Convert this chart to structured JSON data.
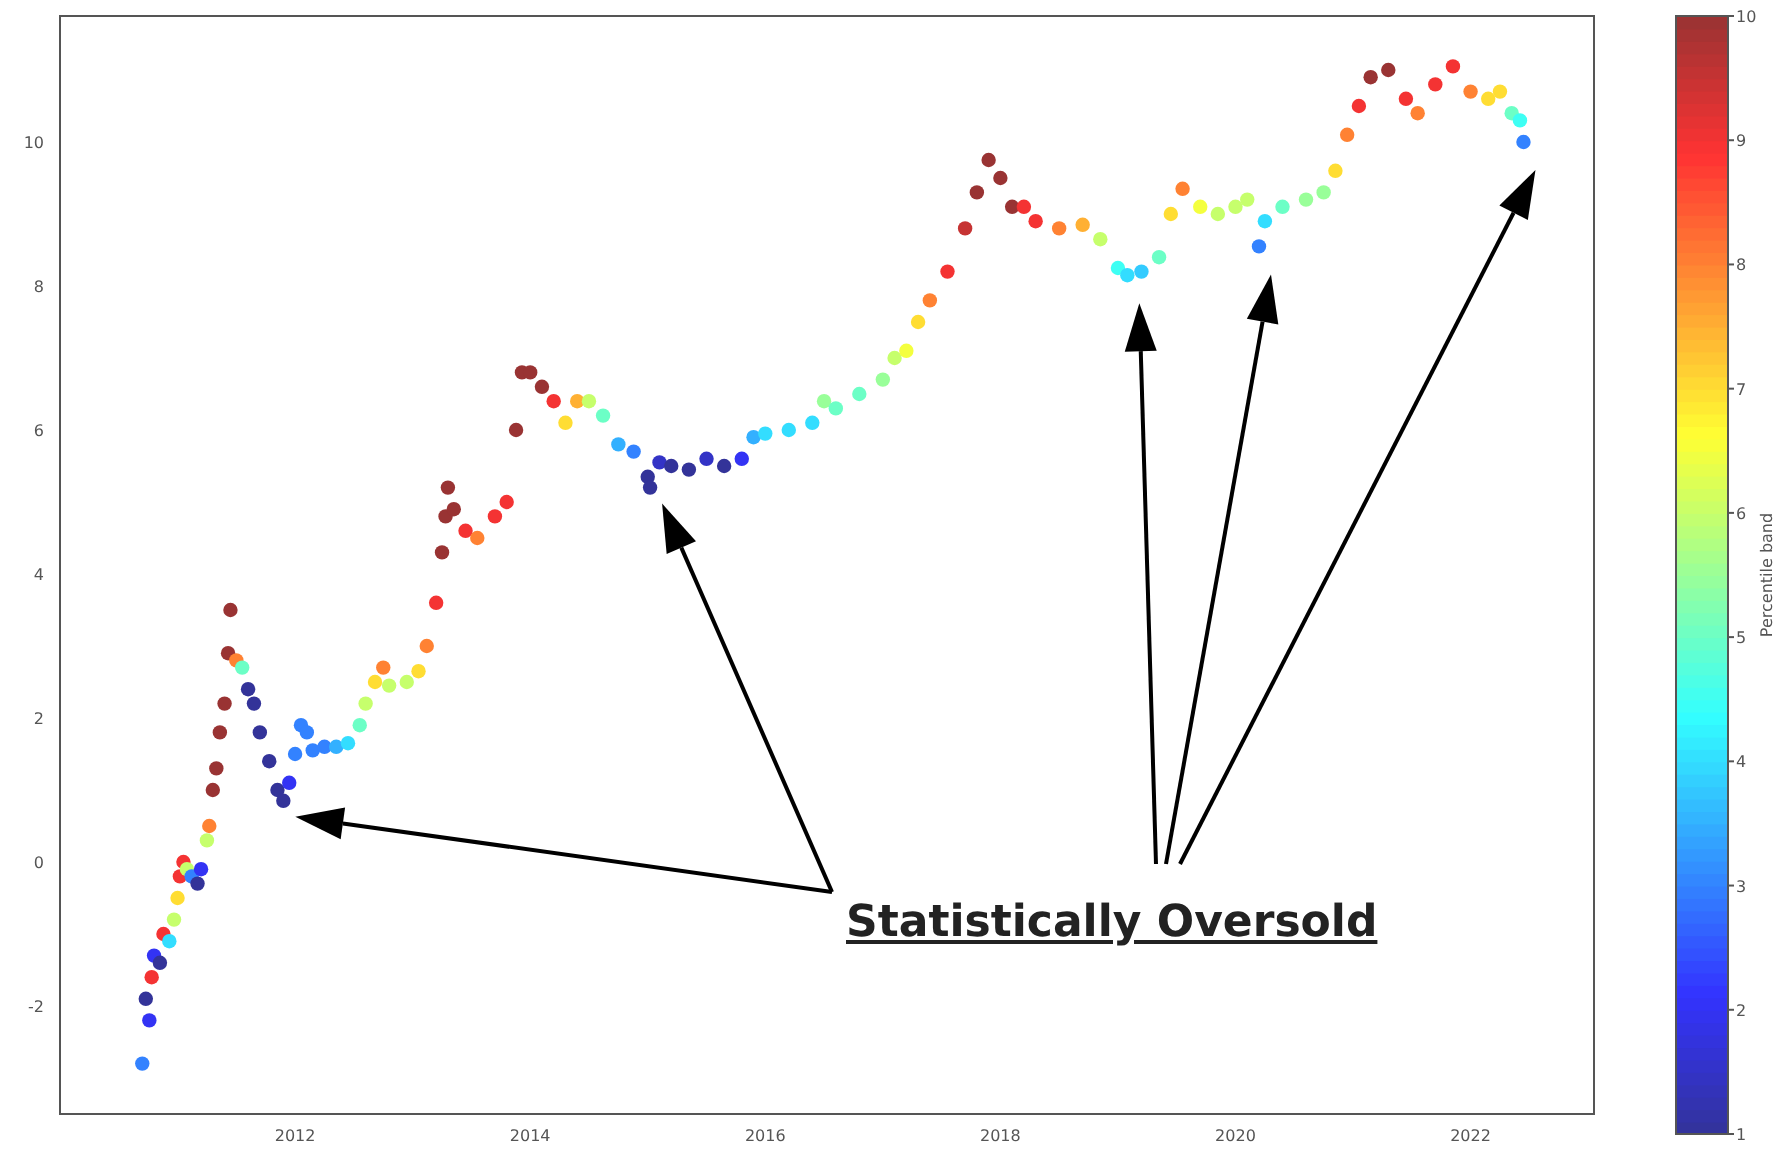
{
  "chart_data": {
    "type": "scatter",
    "x": [
      2010.7,
      2010.73,
      2010.76,
      2010.78,
      2010.8,
      2010.85,
      2010.88,
      2010.93,
      2010.97,
      2011.0,
      2011.02,
      2011.05,
      2011.08,
      2011.12,
      2011.17,
      2011.2,
      2011.25,
      2011.27,
      2011.3,
      2011.33,
      2011.36,
      2011.4,
      2011.43,
      2011.45,
      2011.5,
      2011.55,
      2011.6,
      2011.65,
      2011.7,
      2011.78,
      2011.85,
      2011.9,
      2011.95,
      2012.0,
      2012.05,
      2012.1,
      2012.15,
      2012.25,
      2012.35,
      2012.45,
      2012.55,
      2012.6,
      2012.68,
      2012.75,
      2012.8,
      2012.95,
      2013.05,
      2013.12,
      2013.2,
      2013.25,
      2013.28,
      2013.3,
      2013.35,
      2013.45,
      2013.55,
      2013.7,
      2013.8,
      2013.88,
      2013.93,
      2014.0,
      2014.1,
      2014.2,
      2014.3,
      2014.4,
      2014.5,
      2014.62,
      2014.75,
      2014.88,
      2015.0,
      2015.02,
      2015.1,
      2015.2,
      2015.35,
      2015.5,
      2015.65,
      2015.8,
      2015.9,
      2016.0,
      2016.2,
      2016.4,
      2016.5,
      2016.6,
      2016.8,
      2017.0,
      2017.1,
      2017.2,
      2017.3,
      2017.4,
      2017.55,
      2017.7,
      2017.8,
      2017.9,
      2018.0,
      2018.1,
      2018.2,
      2018.3,
      2018.5,
      2018.7,
      2018.85,
      2019.0,
      2019.08,
      2019.2,
      2019.35,
      2019.45,
      2019.55,
      2019.7,
      2019.85,
      2020.0,
      2020.1,
      2020.2,
      2020.25,
      2020.4,
      2020.6,
      2020.75,
      2020.85,
      2020.95,
      2021.05,
      2021.15,
      2021.3,
      2021.45,
      2021.55,
      2021.7,
      2021.85,
      2022.0,
      2022.15,
      2022.25,
      2022.35,
      2022.42,
      2022.45
    ],
    "values": [
      -2.8,
      -1.9,
      -2.2,
      -1.6,
      -1.3,
      -1.4,
      -1.0,
      -1.1,
      -0.8,
      -0.5,
      -0.2,
      0.0,
      -0.1,
      -0.2,
      -0.3,
      -0.1,
      0.3,
      0.5,
      1.0,
      1.3,
      1.8,
      2.2,
      2.9,
      3.5,
      2.8,
      2.7,
      2.4,
      2.2,
      1.8,
      1.4,
      1.0,
      0.85,
      1.1,
      1.5,
      1.9,
      1.8,
      1.55,
      1.6,
      1.6,
      1.65,
      1.9,
      2.2,
      2.5,
      2.7,
      2.45,
      2.5,
      2.65,
      3.0,
      3.6,
      4.3,
      4.8,
      5.2,
      4.9,
      4.6,
      4.5,
      4.8,
      5.0,
      6.0,
      6.8,
      6.8,
      6.6,
      6.4,
      6.1,
      6.4,
      6.4,
      6.2,
      5.8,
      5.7,
      5.35,
      5.2,
      5.55,
      5.5,
      5.45,
      5.6,
      5.5,
      5.6,
      5.9,
      5.95,
      6.0,
      6.1,
      6.4,
      6.3,
      6.5,
      6.7,
      7.0,
      7.1,
      7.5,
      7.8,
      8.2,
      8.8,
      9.3,
      9.75,
      9.5,
      9.1,
      9.1,
      8.9,
      8.8,
      8.85,
      8.65,
      8.25,
      8.15,
      8.2,
      8.4,
      9.0,
      9.35,
      9.1,
      9.0,
      9.1,
      9.2,
      8.55,
      8.9,
      9.1,
      9.2,
      9.3,
      9.6,
      10.1,
      10.5,
      10.9,
      11.0,
      10.6,
      10.4,
      10.8,
      11.05,
      10.7,
      10.6,
      10.7,
      10.4,
      10.3,
      10.0
    ],
    "cvalues": [
      3,
      1,
      2,
      9,
      2,
      1,
      9,
      4,
      6,
      7,
      9,
      9,
      6,
      3,
      1,
      2,
      6,
      8,
      10,
      10,
      10,
      10,
      10,
      10,
      8,
      5,
      1,
      1,
      1,
      1,
      1,
      1,
      2,
      3,
      3,
      3,
      3,
      3,
      3.5,
      4,
      5,
      6,
      7,
      8,
      6,
      6,
      7,
      8,
      9,
      10,
      10,
      10,
      10,
      9,
      8,
      9,
      9,
      10,
      10,
      10,
      10,
      9,
      7,
      7.5,
      6,
      5,
      3.5,
      3,
      1,
      1,
      1.5,
      1,
      1,
      1.5,
      1,
      2,
      3.5,
      4,
      4,
      4,
      5.5,
      5,
      5,
      5.5,
      6,
      6.5,
      7,
      8,
      9,
      9.5,
      10,
      10,
      10,
      10,
      9,
      9,
      8,
      7.5,
      6,
      4.5,
      4,
      3.8,
      5,
      7,
      8,
      6.5,
      6,
      6,
      6,
      3,
      4,
      5,
      5.5,
      5.5,
      7,
      8,
      9,
      10,
      10,
      9,
      8,
      9,
      9,
      8,
      7,
      7,
      5,
      4.5,
      3
    ],
    "clim": [
      1,
      10
    ],
    "cticks": [
      1,
      2,
      3,
      4,
      5,
      6,
      7,
      8,
      9,
      10
    ],
    "clabel": "Percentile band",
    "xlim": [
      2010.0,
      2023.05
    ],
    "xticks": [
      2012,
      2014,
      2016,
      2018,
      2020,
      2022
    ],
    "ylim": [
      -3.5,
      11.75
    ],
    "yticks": [
      -2,
      0,
      2,
      4,
      6,
      8,
      10
    ],
    "marker": "circle",
    "grid": false,
    "annotations": [
      "Statistically Oversold"
    ]
  }
}
